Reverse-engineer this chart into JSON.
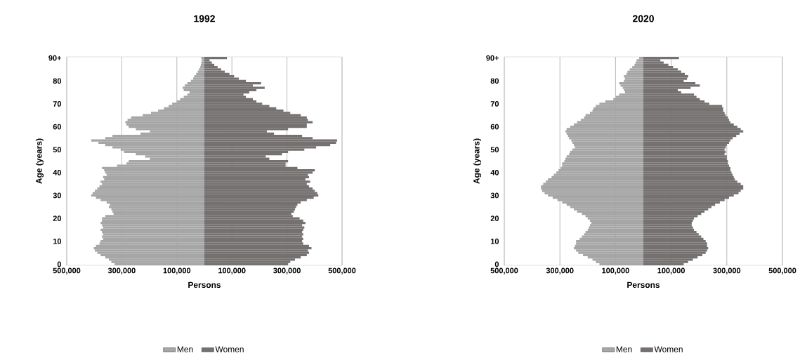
{
  "chart_data": [
    {
      "type": "bar",
      "orientation": "horizontal",
      "stacked": true,
      "title": "1992",
      "xlabel": "Persons",
      "ylabel": "Age (years)",
      "categories": [
        "90+",
        null,
        null,
        null,
        null,
        null,
        null,
        null,
        null,
        null,
        "80",
        null,
        null,
        null,
        null,
        null,
        null,
        null,
        null,
        null,
        "70",
        null,
        null,
        null,
        null,
        null,
        null,
        null,
        null,
        null,
        "60",
        null,
        null,
        null,
        null,
        null,
        null,
        null,
        null,
        null,
        "50",
        null,
        null,
        null,
        null,
        null,
        null,
        null,
        null,
        null,
        "40",
        null,
        null,
        null,
        null,
        null,
        null,
        null,
        null,
        null,
        "30",
        null,
        null,
        null,
        null,
        null,
        null,
        null,
        null,
        null,
        "20",
        null,
        null,
        null,
        null,
        null,
        null,
        null,
        null,
        null,
        "10",
        null,
        null,
        null,
        null,
        null,
        null,
        null,
        null,
        null,
        "0"
      ],
      "xlim": [
        -500000,
        500000
      ],
      "xticks": [
        {
          "value": -500000,
          "label": "500,000"
        },
        {
          "value": -300000,
          "label": "300,000"
        },
        {
          "value": -100000,
          "label": "100,000"
        },
        {
          "value": 100000,
          "label": "100,000"
        },
        {
          "value": 300000,
          "label": "300,000"
        },
        {
          "value": 500000,
          "label": "500,000"
        }
      ],
      "grid": "x",
      "legend": "bottom",
      "series": [
        {
          "name": "Men",
          "color": "#a6a6a6",
          "values": [
            -11000,
            -9000,
            -11000,
            -13000,
            -15000,
            -20000,
            -24000,
            -30000,
            -37000,
            -41000,
            -49000,
            -62000,
            -71000,
            -79000,
            -75000,
            -54000,
            -62000,
            -75000,
            -88000,
            -100000,
            -117000,
            -130000,
            -147000,
            -168000,
            -194000,
            -224000,
            -266000,
            -279000,
            -287000,
            -283000,
            -275000,
            -249000,
            -198000,
            -232000,
            -334000,
            -360000,
            -411000,
            -385000,
            -360000,
            -334000,
            -304000,
            -292000,
            -249000,
            -215000,
            -198000,
            -275000,
            -283000,
            -317000,
            -372000,
            -364000,
            -360000,
            -355000,
            -368000,
            -364000,
            -377000,
            -372000,
            -381000,
            -389000,
            -398000,
            -406000,
            -411000,
            -394000,
            -377000,
            -355000,
            -343000,
            -347000,
            -338000,
            -334000,
            -330000,
            -360000,
            -372000,
            -372000,
            -377000,
            -372000,
            -368000,
            -377000,
            -372000,
            -368000,
            -372000,
            -368000,
            -377000,
            -381000,
            -394000,
            -402000,
            -398000,
            -389000,
            -377000,
            -360000,
            -347000,
            -338000,
            -326000
          ]
        },
        {
          "name": "Women",
          "color": "#767171",
          "values": [
            82000,
            19000,
            27000,
            36000,
            48000,
            61000,
            74000,
            91000,
            108000,
            125000,
            151000,
            206000,
            176000,
            219000,
            189000,
            163000,
            142000,
            151000,
            176000,
            189000,
            210000,
            236000,
            261000,
            287000,
            312000,
            350000,
            372000,
            376000,
            393000,
            372000,
            372000,
            304000,
            227000,
            253000,
            355000,
            393000,
            482000,
            478000,
            457000,
            406000,
            363000,
            304000,
            282000,
            223000,
            236000,
            304000,
            295000,
            295000,
            338000,
            401000,
            393000,
            376000,
            380000,
            367000,
            384000,
            372000,
            380000,
            393000,
            401000,
            410000,
            414000,
            397000,
            372000,
            350000,
            338000,
            333000,
            329000,
            325000,
            316000,
            321000,
            346000,
            359000,
            367000,
            355000,
            363000,
            359000,
            355000,
            359000,
            355000,
            359000,
            355000,
            359000,
            380000,
            389000,
            376000,
            380000,
            372000,
            350000,
            329000,
            312000,
            304000
          ]
        }
      ]
    },
    {
      "type": "bar",
      "orientation": "horizontal",
      "stacked": true,
      "title": "2020",
      "xlabel": "Persons",
      "ylabel": "Age (years)",
      "categories": [
        "90+",
        null,
        null,
        null,
        null,
        null,
        null,
        null,
        null,
        null,
        "80",
        null,
        null,
        null,
        null,
        null,
        null,
        null,
        null,
        null,
        "70",
        null,
        null,
        null,
        null,
        null,
        null,
        null,
        null,
        null,
        "60",
        null,
        null,
        null,
        null,
        null,
        null,
        null,
        null,
        null,
        "50",
        null,
        null,
        null,
        null,
        null,
        null,
        null,
        null,
        null,
        "40",
        null,
        null,
        null,
        null,
        null,
        null,
        null,
        null,
        null,
        "30",
        null,
        null,
        null,
        null,
        null,
        null,
        null,
        null,
        null,
        "20",
        null,
        null,
        null,
        null,
        null,
        null,
        null,
        null,
        null,
        "10",
        null,
        null,
        null,
        null,
        null,
        null,
        null,
        null,
        null,
        "0"
      ],
      "xlim": [
        -500000,
        500000
      ],
      "xticks": [
        {
          "value": -500000,
          "label": "500,000"
        },
        {
          "value": -300000,
          "label": "300,000"
        },
        {
          "value": -100000,
          "label": "100,000"
        },
        {
          "value": 100000,
          "label": "100,000"
        },
        {
          "value": 300000,
          "label": "300,000"
        },
        {
          "value": 500000,
          "label": "500,000"
        }
      ],
      "grid": "x",
      "legend": "bottom",
      "series": [
        {
          "name": "Men",
          "color": "#a6a6a6",
          "values": [
            -15000,
            -24000,
            -28000,
            -32000,
            -40000,
            -49000,
            -57000,
            -61000,
            -70000,
            -66000,
            -70000,
            -87000,
            -82000,
            -74000,
            -70000,
            -66000,
            -87000,
            -99000,
            -108000,
            -137000,
            -158000,
            -171000,
            -179000,
            -183000,
            -192000,
            -208000,
            -213000,
            -225000,
            -238000,
            -250000,
            -263000,
            -276000,
            -280000,
            -276000,
            -271000,
            -267000,
            -259000,
            -255000,
            -250000,
            -246000,
            -255000,
            -263000,
            -267000,
            -276000,
            -280000,
            -284000,
            -292000,
            -292000,
            -297000,
            -305000,
            -313000,
            -322000,
            -330000,
            -343000,
            -351000,
            -360000,
            -368000,
            -368000,
            -364000,
            -355000,
            -343000,
            -326000,
            -309000,
            -292000,
            -276000,
            -263000,
            -250000,
            -238000,
            -221000,
            -208000,
            -200000,
            -192000,
            -187000,
            -192000,
            -196000,
            -200000,
            -208000,
            -213000,
            -221000,
            -229000,
            -242000,
            -242000,
            -246000,
            -250000,
            -242000,
            -234000,
            -217000,
            -200000,
            -183000,
            -171000,
            -158000
          ]
        },
        {
          "name": "Women",
          "color": "#767171",
          "values": [
            128000,
            61000,
            73000,
            90000,
            107000,
            124000,
            136000,
            149000,
            161000,
            157000,
            145000,
            187000,
            203000,
            170000,
            124000,
            136000,
            182000,
            191000,
            203000,
            220000,
            237000,
            283000,
            287000,
            287000,
            292000,
            296000,
            304000,
            308000,
            313000,
            325000,
            338000,
            350000,
            359000,
            346000,
            334000,
            321000,
            313000,
            308000,
            300000,
            296000,
            292000,
            296000,
            292000,
            300000,
            300000,
            304000,
            304000,
            308000,
            313000,
            313000,
            317000,
            321000,
            325000,
            329000,
            338000,
            350000,
            359000,
            359000,
            350000,
            342000,
            325000,
            308000,
            292000,
            275000,
            258000,
            245000,
            233000,
            220000,
            208000,
            195000,
            182000,
            178000,
            174000,
            174000,
            178000,
            182000,
            191000,
            199000,
            208000,
            216000,
            224000,
            229000,
            229000,
            233000,
            229000,
            224000,
            212000,
            195000,
            178000,
            161000,
            145000
          ]
        }
      ]
    }
  ]
}
